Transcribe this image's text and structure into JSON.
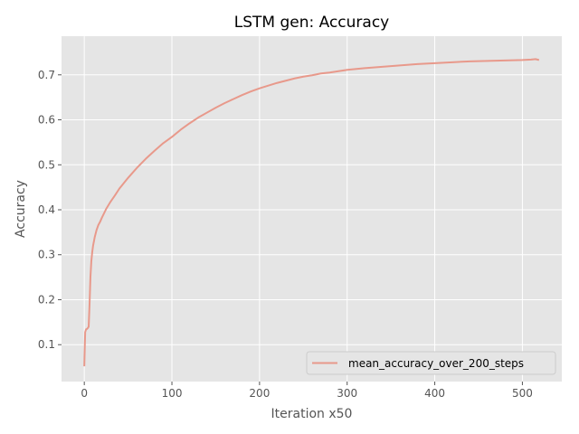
{
  "chart_data": {
    "type": "line",
    "title": "LSTM gen: Accuracy",
    "xlabel": "Iteration x50",
    "ylabel": "Accuracy",
    "xlim": [
      -26,
      545
    ],
    "ylim": [
      0.018,
      0.786
    ],
    "xticks": [
      0,
      100,
      200,
      300,
      400,
      500
    ],
    "yticks": [
      0.1,
      0.2,
      0.3,
      0.4,
      0.5,
      0.6,
      0.7
    ],
    "grid": true,
    "legend_position": "lower-right",
    "series": [
      {
        "name": "mean_accuracy_over_200_steps",
        "color": "#E8998B",
        "x": [
          0,
          1,
          2,
          3,
          4,
          5,
          6,
          7,
          8,
          9,
          10,
          12,
          14,
          16,
          18,
          20,
          25,
          30,
          35,
          40,
          45,
          50,
          55,
          60,
          70,
          80,
          90,
          100,
          110,
          120,
          130,
          140,
          150,
          160,
          170,
          180,
          190,
          200,
          210,
          220,
          230,
          240,
          250,
          260,
          270,
          280,
          290,
          300,
          320,
          340,
          360,
          380,
          400,
          420,
          440,
          460,
          480,
          500,
          510,
          515,
          519
        ],
        "y": [
          0.052,
          0.128,
          0.134,
          0.135,
          0.137,
          0.14,
          0.19,
          0.25,
          0.285,
          0.305,
          0.32,
          0.34,
          0.355,
          0.366,
          0.373,
          0.382,
          0.402,
          0.418,
          0.432,
          0.447,
          0.459,
          0.471,
          0.482,
          0.493,
          0.513,
          0.531,
          0.548,
          0.562,
          0.578,
          0.592,
          0.605,
          0.616,
          0.627,
          0.637,
          0.646,
          0.655,
          0.663,
          0.67,
          0.676,
          0.682,
          0.687,
          0.692,
          0.696,
          0.699,
          0.703,
          0.705,
          0.708,
          0.711,
          0.715,
          0.718,
          0.721,
          0.724,
          0.726,
          0.728,
          0.73,
          0.731,
          0.732,
          0.733,
          0.734,
          0.735,
          0.733
        ]
      }
    ]
  }
}
